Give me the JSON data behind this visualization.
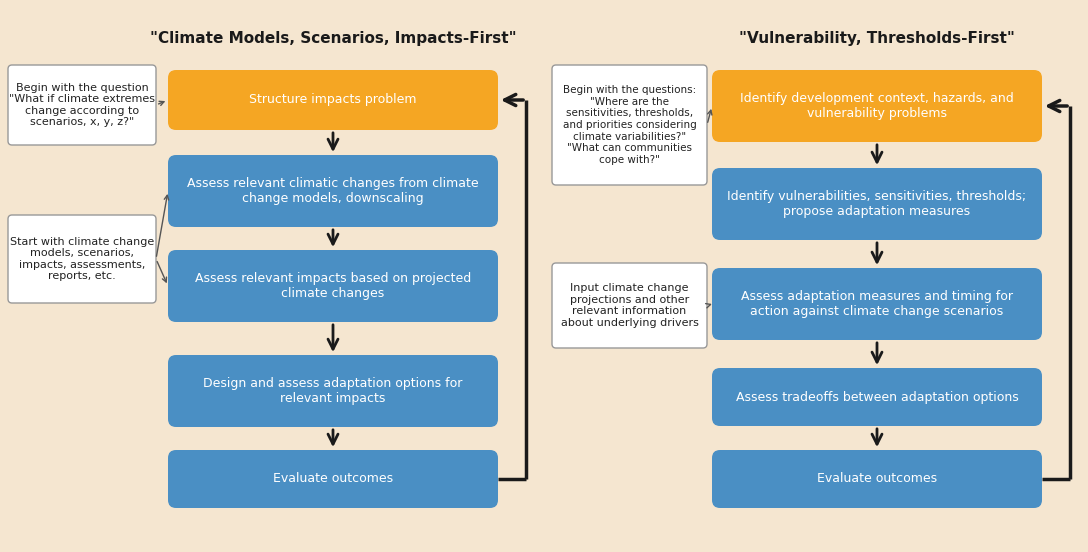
{
  "bg": "#f5e6d0",
  "orange": "#f5a623",
  "blue": "#4a8fc4",
  "white": "#ffffff",
  "black": "#1a1a1a",
  "gray_edge": "#999999",
  "left_title": "\"Climate Models, Scenarios, Impacts-First\"",
  "right_title": "\"Vulnerability, Thresholds-First\"",
  "left_boxes": [
    "Structure impacts problem",
    "Assess relevant climatic changes from climate\nchange models, downscaling",
    "Assess relevant impacts based on projected\nclimate changes",
    "Design and assess adaptation options for\nrelevant impacts",
    "Evaluate outcomes"
  ],
  "left_colors": [
    "#f5a623",
    "#4a8fc4",
    "#4a8fc4",
    "#4a8fc4",
    "#4a8fc4"
  ],
  "right_boxes": [
    "Identify development context, hazards, and\nvulnerability problems",
    "Identify vulnerabilities, sensitivities, thresholds;\npropose adaptation measures",
    "Assess adaptation measures and timing for\naction against climate change scenarios",
    "Assess tradeoffs between adaptation options",
    "Evaluate outcomes"
  ],
  "right_colors": [
    "#f5a623",
    "#4a8fc4",
    "#4a8fc4",
    "#4a8fc4",
    "#4a8fc4"
  ],
  "left_note1": "Begin with the question\n\"What if climate extremes\nchange according to\nscenarios, x, y, z?\"",
  "left_note2": "Start with climate change\nmodels, scenarios,\nimpacts, assessments,\nreports, etc.",
  "right_note1": "Begin with the questions:\n\"Where are the\nsensitivities, thresholds,\nand priorities considering\nclimate variabilities?\"\n\"What can communities\ncope with?\"",
  "right_note2": "Input climate change\nprojections and other\nrelevant information\nabout underlying drivers"
}
